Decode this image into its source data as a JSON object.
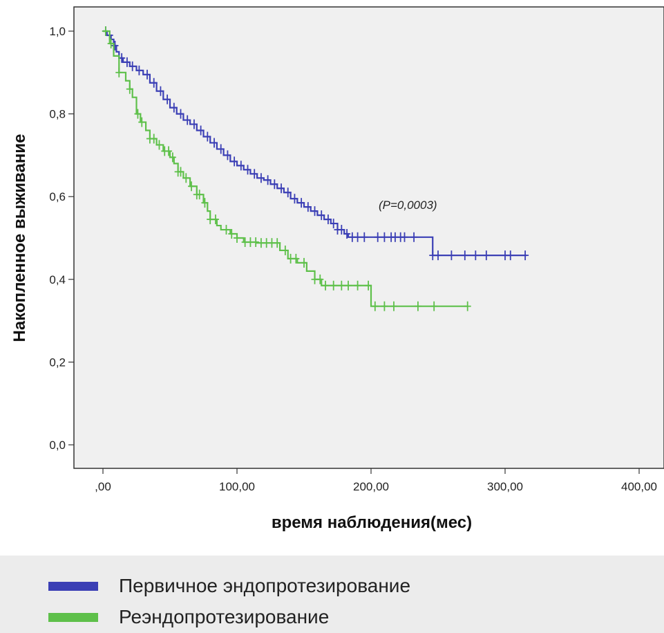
{
  "chart_data": {
    "type": "line",
    "subtype": "kaplan-meier",
    "title": "",
    "xlabel": "время наблюдения(мес)",
    "ylabel": "Накопленное выживание",
    "xlim": [
      -20,
      420
    ],
    "ylim": [
      -0.05,
      1.06
    ],
    "x_ticks": [
      0,
      100,
      200,
      300,
      400
    ],
    "x_tick_labels": [
      ",00",
      "100,00",
      "200,00",
      "300,00",
      "400,00"
    ],
    "y_ticks": [
      0,
      0.2,
      0.4,
      0.6,
      0.8,
      1.0
    ],
    "y_tick_labels": [
      "0,0",
      "0,2",
      "0,4",
      "0,6",
      "0,8",
      "1,0"
    ],
    "grid": false,
    "legend_position": "bottom",
    "annotation": "(P=0,0003)",
    "series": [
      {
        "name": "Первичное эндопротезирование",
        "color": "#3b3fb5",
        "steps": [
          [
            0,
            1.0
          ],
          [
            3,
            0.99
          ],
          [
            6,
            0.98
          ],
          [
            8,
            0.965
          ],
          [
            10,
            0.95
          ],
          [
            12,
            0.935
          ],
          [
            15,
            0.925
          ],
          [
            20,
            0.915
          ],
          [
            25,
            0.905
          ],
          [
            30,
            0.895
          ],
          [
            35,
            0.875
          ],
          [
            40,
            0.855
          ],
          [
            45,
            0.835
          ],
          [
            50,
            0.815
          ],
          [
            55,
            0.8
          ],
          [
            60,
            0.785
          ],
          [
            65,
            0.775
          ],
          [
            70,
            0.76
          ],
          [
            75,
            0.745
          ],
          [
            80,
            0.73
          ],
          [
            85,
            0.715
          ],
          [
            90,
            0.7
          ],
          [
            95,
            0.685
          ],
          [
            100,
            0.675
          ],
          [
            105,
            0.665
          ],
          [
            110,
            0.655
          ],
          [
            115,
            0.645
          ],
          [
            120,
            0.64
          ],
          [
            125,
            0.63
          ],
          [
            130,
            0.62
          ],
          [
            135,
            0.61
          ],
          [
            140,
            0.595
          ],
          [
            145,
            0.585
          ],
          [
            150,
            0.575
          ],
          [
            155,
            0.565
          ],
          [
            160,
            0.555
          ],
          [
            165,
            0.545
          ],
          [
            170,
            0.535
          ],
          [
            175,
            0.52
          ],
          [
            180,
            0.51
          ],
          [
            183,
            0.502
          ],
          [
            246,
            0.458
          ],
          [
            316,
            0.458
          ]
        ],
        "censor_x": [
          2,
          5,
          9,
          14,
          18,
          22,
          27,
          33,
          38,
          43,
          48,
          53,
          58,
          63,
          68,
          73,
          78,
          83,
          88,
          93,
          98,
          103,
          108,
          113,
          118,
          123,
          128,
          133,
          138,
          143,
          148,
          153,
          158,
          163,
          168,
          172,
          175,
          178,
          182,
          186,
          190,
          195,
          205,
          210,
          215,
          218,
          222,
          225,
          232,
          246,
          250,
          260,
          270,
          278,
          286,
          300,
          304,
          315
        ]
      },
      {
        "name": "Реэндопротезирование",
        "color": "#5ec04a",
        "steps": [
          [
            0,
            1.0
          ],
          [
            5,
            0.97
          ],
          [
            8,
            0.94
          ],
          [
            12,
            0.9
          ],
          [
            17,
            0.88
          ],
          [
            20,
            0.86
          ],
          [
            22,
            0.84
          ],
          [
            25,
            0.8
          ],
          [
            28,
            0.78
          ],
          [
            32,
            0.76
          ],
          [
            35,
            0.74
          ],
          [
            40,
            0.725
          ],
          [
            45,
            0.71
          ],
          [
            50,
            0.695
          ],
          [
            53,
            0.68
          ],
          [
            56,
            0.66
          ],
          [
            60,
            0.645
          ],
          [
            65,
            0.625
          ],
          [
            70,
            0.605
          ],
          [
            75,
            0.585
          ],
          [
            78,
            0.565
          ],
          [
            80,
            0.545
          ],
          [
            85,
            0.53
          ],
          [
            88,
            0.52
          ],
          [
            95,
            0.51
          ],
          [
            100,
            0.5
          ],
          [
            105,
            0.49
          ],
          [
            115,
            0.488
          ],
          [
            132,
            0.47
          ],
          [
            138,
            0.45
          ],
          [
            145,
            0.44
          ],
          [
            152,
            0.42
          ],
          [
            158,
            0.4
          ],
          [
            163,
            0.385
          ],
          [
            200,
            0.335
          ],
          [
            272,
            0.335
          ]
        ],
        "censor_x": [
          2,
          6,
          12,
          20,
          26,
          29,
          35,
          38,
          42,
          46,
          49,
          52,
          56,
          58,
          62,
          66,
          70,
          72,
          76,
          80,
          84,
          92,
          96,
          100,
          106,
          110,
          114,
          118,
          122,
          126,
          130,
          136,
          140,
          144,
          150,
          158,
          162,
          166,
          172,
          178,
          183,
          190,
          198,
          203,
          210,
          217,
          235,
          247,
          272
        ]
      }
    ]
  },
  "legend": {
    "items": [
      {
        "label": "Первичное эндопротезирование",
        "color": "#3b3fb5"
      },
      {
        "label": "Реэндопротезирование",
        "color": "#5ec04a"
      }
    ]
  }
}
